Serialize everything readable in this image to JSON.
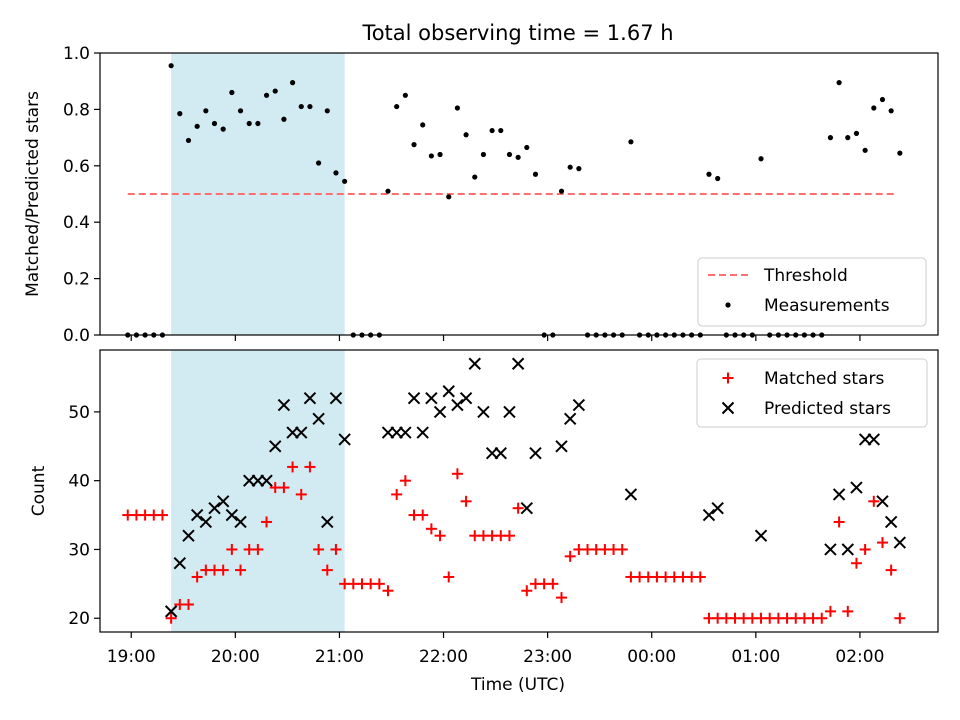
{
  "figure": {
    "title": "Total observing time = 1.67 h",
    "xlabel": "Time (UTC)",
    "xticks": [
      "19:00",
      "20:00",
      "21:00",
      "22:00",
      "23:00",
      "00:00",
      "01:00",
      "02:00"
    ]
  },
  "colors": {
    "highlight": "#add8e6",
    "threshold": "#ff6f6f",
    "matched": "#ff0000",
    "predicted": "#000000",
    "measurement": "#000000"
  },
  "chart_data": [
    {
      "type": "scatter",
      "panel": "top",
      "ylabel": "Matched/Predicted stars",
      "ylim": [
        0,
        1
      ],
      "yticks": [
        "0.0",
        "0.2",
        "0.4",
        "0.6",
        "0.8",
        "1.0"
      ],
      "xlim_hours": [
        18.7,
        26.75
      ],
      "highlight_span": [
        "19:23",
        "21:03"
      ],
      "legend": {
        "placement": "lower-right",
        "entries": [
          "Threshold",
          "Measurements"
        ]
      },
      "threshold": {
        "name": "Threshold",
        "value": 0.5,
        "x_range": [
          "18:58",
          "02:20"
        ]
      },
      "series": [
        {
          "name": "Measurements",
          "points": [
            [
              "18:58",
              0
            ],
            [
              "19:03",
              0
            ],
            [
              "19:08",
              0
            ],
            [
              "19:13",
              0
            ],
            [
              "19:18",
              0
            ],
            [
              "19:23",
              0.955
            ],
            [
              "19:28",
              0.785
            ],
            [
              "19:33",
              0.69
            ],
            [
              "19:38",
              0.74
            ],
            [
              "19:43",
              0.795
            ],
            [
              "19:48",
              0.75
            ],
            [
              "19:53",
              0.73
            ],
            [
              "19:58",
              0.86
            ],
            [
              "20:03",
              0.795
            ],
            [
              "20:08",
              0.75
            ],
            [
              "20:13",
              0.75
            ],
            [
              "20:18",
              0.85
            ],
            [
              "20:23",
              0.865
            ],
            [
              "20:28",
              0.765
            ],
            [
              "20:33",
              0.895
            ],
            [
              "20:38",
              0.81
            ],
            [
              "20:43",
              0.81
            ],
            [
              "20:48",
              0.61
            ],
            [
              "20:53",
              0.795
            ],
            [
              "20:58",
              0.575
            ],
            [
              "21:03",
              0.545
            ],
            [
              "21:08",
              0
            ],
            [
              "21:13",
              0
            ],
            [
              "21:18",
              0
            ],
            [
              "21:23",
              0
            ],
            [
              "21:28",
              0.51
            ],
            [
              "21:33",
              0.81
            ],
            [
              "21:38",
              0.85
            ],
            [
              "21:43",
              0.675
            ],
            [
              "21:48",
              0.745
            ],
            [
              "21:53",
              0.635
            ],
            [
              "21:58",
              0.64
            ],
            [
              "22:03",
              0.49
            ],
            [
              "22:08",
              0.805
            ],
            [
              "22:13",
              0.71
            ],
            [
              "22:18",
              0.56
            ],
            [
              "22:23",
              0.64
            ],
            [
              "22:28",
              0.725
            ],
            [
              "22:33",
              0.725
            ],
            [
              "22:38",
              0.64
            ],
            [
              "22:43",
              0.63
            ],
            [
              "22:48",
              0.665
            ],
            [
              "22:53",
              0.57
            ],
            [
              "22:58",
              0
            ],
            [
              "23:03",
              0
            ],
            [
              "23:08",
              0.51
            ],
            [
              "23:13",
              0.595
            ],
            [
              "23:18",
              0.59
            ],
            [
              "23:23",
              0
            ],
            [
              "23:28",
              0
            ],
            [
              "23:33",
              0
            ],
            [
              "23:38",
              0
            ],
            [
              "23:43",
              0
            ],
            [
              "23:48",
              0.685
            ],
            [
              "23:53",
              0
            ],
            [
              "23:58",
              0
            ],
            [
              "00:03",
              0
            ],
            [
              "00:08",
              0
            ],
            [
              "00:13",
              0
            ],
            [
              "00:18",
              0
            ],
            [
              "00:23",
              0
            ],
            [
              "00:28",
              0
            ],
            [
              "00:33",
              0.57
            ],
            [
              "00:38",
              0.555
            ],
            [
              "00:43",
              0
            ],
            [
              "00:48",
              0
            ],
            [
              "00:53",
              0
            ],
            [
              "00:58",
              0
            ],
            [
              "01:03",
              0.625
            ],
            [
              "01:08",
              0
            ],
            [
              "01:13",
              0
            ],
            [
              "01:18",
              0
            ],
            [
              "01:23",
              0
            ],
            [
              "01:28",
              0
            ],
            [
              "01:33",
              0
            ],
            [
              "01:38",
              0
            ],
            [
              "01:43",
              0.7
            ],
            [
              "01:48",
              0.895
            ],
            [
              "01:53",
              0.7
            ],
            [
              "01:58",
              0.715
            ],
            [
              "02:03",
              0.655
            ],
            [
              "02:08",
              0.805
            ],
            [
              "02:13",
              0.835
            ],
            [
              "02:18",
              0.795
            ],
            [
              "02:23",
              0.645
            ]
          ]
        }
      ]
    },
    {
      "type": "scatter",
      "panel": "bottom",
      "ylabel": "Count",
      "ylim": [
        18,
        59
      ],
      "yticks": [
        "20",
        "30",
        "40",
        "50"
      ],
      "xlim_hours": [
        18.7,
        26.75
      ],
      "highlight_span": [
        "19:23",
        "21:03"
      ],
      "legend": {
        "placement": "upper-right",
        "entries": [
          "Matched stars",
          "Predicted stars"
        ]
      },
      "series": [
        {
          "name": "Matched stars",
          "marker": "+",
          "points": [
            [
              "18:58",
              35
            ],
            [
              "19:03",
              35
            ],
            [
              "19:08",
              35
            ],
            [
              "19:13",
              35
            ],
            [
              "19:18",
              35
            ],
            [
              "19:23",
              20
            ],
            [
              "19:28",
              22
            ],
            [
              "19:33",
              22
            ],
            [
              "19:38",
              26
            ],
            [
              "19:43",
              27
            ],
            [
              "19:48",
              27
            ],
            [
              "19:53",
              27
            ],
            [
              "19:58",
              30
            ],
            [
              "20:03",
              27
            ],
            [
              "20:08",
              30
            ],
            [
              "20:13",
              30
            ],
            [
              "20:18",
              34
            ],
            [
              "20:23",
              39
            ],
            [
              "20:28",
              39
            ],
            [
              "20:33",
              42
            ],
            [
              "20:38",
              38
            ],
            [
              "20:43",
              42
            ],
            [
              "20:48",
              30
            ],
            [
              "20:53",
              27
            ],
            [
              "20:58",
              30
            ],
            [
              "21:03",
              25
            ],
            [
              "21:08",
              25
            ],
            [
              "21:13",
              25
            ],
            [
              "21:18",
              25
            ],
            [
              "21:23",
              25
            ],
            [
              "21:28",
              24
            ],
            [
              "21:33",
              38
            ],
            [
              "21:38",
              40
            ],
            [
              "21:43",
              35
            ],
            [
              "21:48",
              35
            ],
            [
              "21:53",
              33
            ],
            [
              "21:58",
              32
            ],
            [
              "22:03",
              26
            ],
            [
              "22:08",
              41
            ],
            [
              "22:13",
              37
            ],
            [
              "22:18",
              32
            ],
            [
              "22:23",
              32
            ],
            [
              "22:28",
              32
            ],
            [
              "22:33",
              32
            ],
            [
              "22:38",
              32
            ],
            [
              "22:43",
              36
            ],
            [
              "22:48",
              24
            ],
            [
              "22:53",
              25
            ],
            [
              "22:58",
              25
            ],
            [
              "23:03",
              25
            ],
            [
              "23:08",
              23
            ],
            [
              "23:13",
              29
            ],
            [
              "23:18",
              30
            ],
            [
              "23:23",
              30
            ],
            [
              "23:28",
              30
            ],
            [
              "23:33",
              30
            ],
            [
              "23:38",
              30
            ],
            [
              "23:43",
              30
            ],
            [
              "23:48",
              26
            ],
            [
              "23:53",
              26
            ],
            [
              "23:58",
              26
            ],
            [
              "00:03",
              26
            ],
            [
              "00:08",
              26
            ],
            [
              "00:13",
              26
            ],
            [
              "00:18",
              26
            ],
            [
              "00:23",
              26
            ],
            [
              "00:28",
              26
            ],
            [
              "00:33",
              20
            ],
            [
              "00:38",
              20
            ],
            [
              "00:43",
              20
            ],
            [
              "00:48",
              20
            ],
            [
              "00:53",
              20
            ],
            [
              "00:58",
              20
            ],
            [
              "01:03",
              20
            ],
            [
              "01:08",
              20
            ],
            [
              "01:13",
              20
            ],
            [
              "01:18",
              20
            ],
            [
              "01:23",
              20
            ],
            [
              "01:28",
              20
            ],
            [
              "01:33",
              20
            ],
            [
              "01:38",
              20
            ],
            [
              "01:43",
              21
            ],
            [
              "01:48",
              34
            ],
            [
              "01:53",
              21
            ],
            [
              "01:58",
              28
            ],
            [
              "02:03",
              30
            ],
            [
              "02:08",
              37
            ],
            [
              "02:13",
              31
            ],
            [
              "02:18",
              27
            ],
            [
              "02:23",
              20
            ]
          ]
        },
        {
          "name": "Predicted stars",
          "marker": "x",
          "points": [
            [
              "19:23",
              21
            ],
            [
              "19:28",
              28
            ],
            [
              "19:33",
              32
            ],
            [
              "19:38",
              35
            ],
            [
              "19:43",
              34
            ],
            [
              "19:48",
              36
            ],
            [
              "19:53",
              37
            ],
            [
              "19:58",
              35
            ],
            [
              "20:03",
              34
            ],
            [
              "20:08",
              40
            ],
            [
              "20:13",
              40
            ],
            [
              "20:18",
              40
            ],
            [
              "20:23",
              45
            ],
            [
              "20:28",
              51
            ],
            [
              "20:33",
              47
            ],
            [
              "20:38",
              47
            ],
            [
              "20:43",
              52
            ],
            [
              "20:48",
              49
            ],
            [
              "20:53",
              34
            ],
            [
              "20:58",
              52
            ],
            [
              "21:03",
              46
            ],
            [
              "21:28",
              47
            ],
            [
              "21:33",
              47
            ],
            [
              "21:38",
              47
            ],
            [
              "21:43",
              52
            ],
            [
              "21:48",
              47
            ],
            [
              "21:53",
              52
            ],
            [
              "21:58",
              50
            ],
            [
              "22:03",
              53
            ],
            [
              "22:08",
              51
            ],
            [
              "22:13",
              52
            ],
            [
              "22:18",
              57
            ],
            [
              "22:23",
              50
            ],
            [
              "22:28",
              44
            ],
            [
              "22:33",
              44
            ],
            [
              "22:38",
              50
            ],
            [
              "22:43",
              57
            ],
            [
              "22:48",
              36
            ],
            [
              "22:53",
              44
            ],
            [
              "23:08",
              45
            ],
            [
              "23:13",
              49
            ],
            [
              "23:18",
              51
            ],
            [
              "23:48",
              38
            ],
            [
              "00:33",
              35
            ],
            [
              "00:38",
              36
            ],
            [
              "01:03",
              32
            ],
            [
              "01:43",
              30
            ],
            [
              "01:48",
              38
            ],
            [
              "01:53",
              30
            ],
            [
              "01:58",
              39
            ],
            [
              "02:03",
              46
            ],
            [
              "02:08",
              46
            ],
            [
              "02:13",
              37
            ],
            [
              "02:18",
              34
            ],
            [
              "02:23",
              31
            ]
          ]
        }
      ]
    }
  ]
}
